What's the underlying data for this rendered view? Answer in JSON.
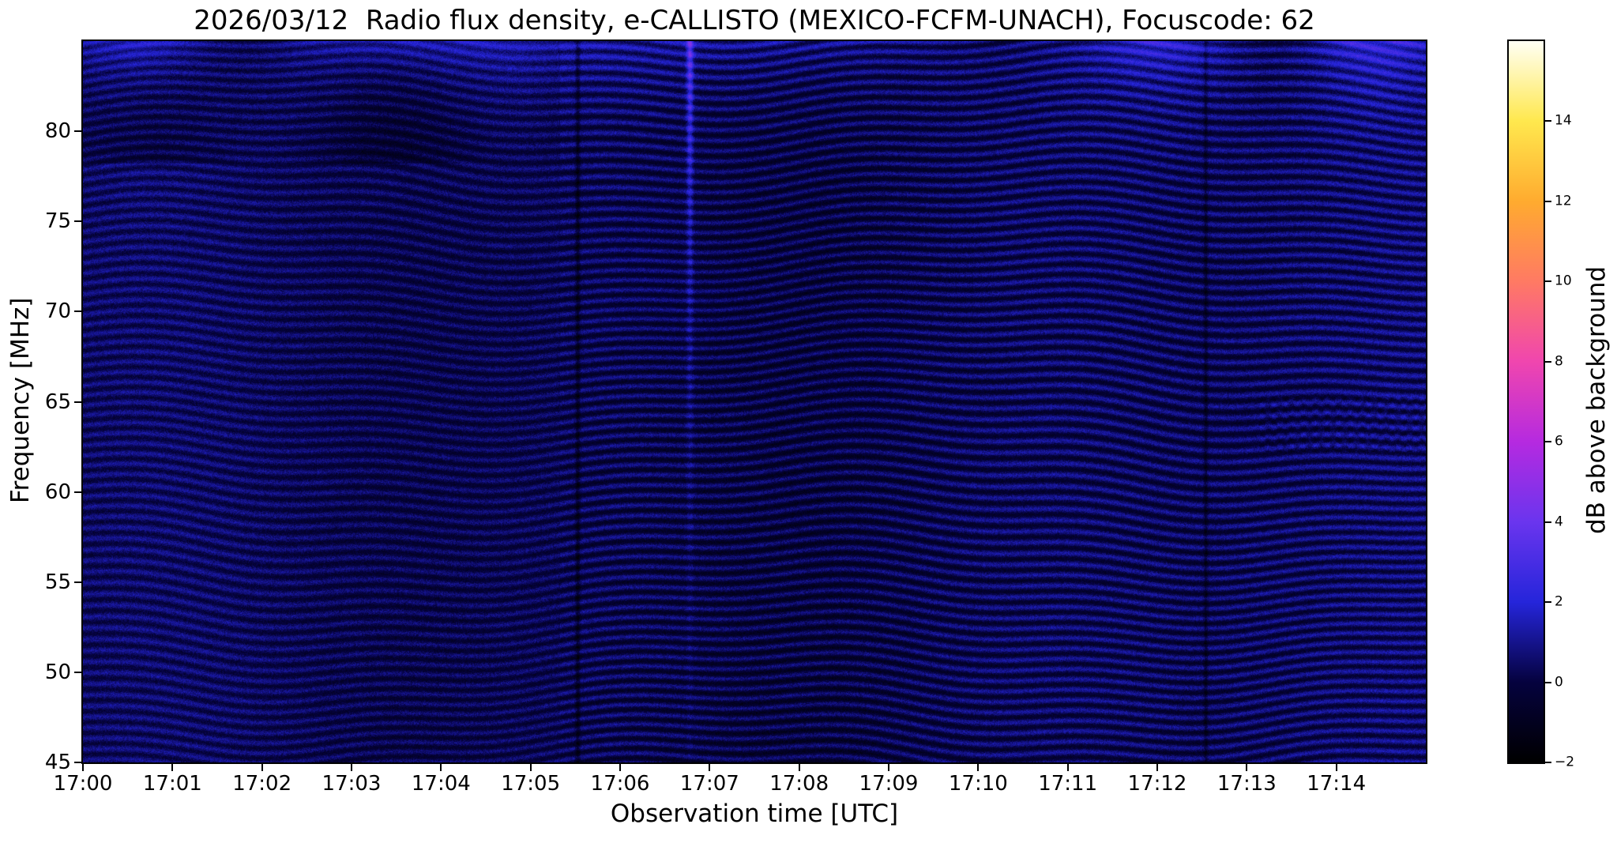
{
  "chart_data": {
    "type": "heatmap",
    "title": "2026/03/12  Radio flux density, e-CALLISTO (MEXICO-FCFM-UNACH), Focuscode: 62",
    "date": "2026/03/12",
    "instrument": "e-CALLISTO",
    "station": "MEXICO-FCFM-UNACH",
    "focuscode": 62,
    "xlabel": "Observation time [UTC]",
    "ylabel": "Frequency [MHz]",
    "x_axis": {
      "start": "17:00",
      "end": "17:15",
      "span_minutes": 15,
      "tick_interval_minutes": 1,
      "tick_labels": [
        "17:00",
        "17:01",
        "17:02",
        "17:03",
        "17:04",
        "17:05",
        "17:06",
        "17:07",
        "17:08",
        "17:09",
        "17:10",
        "17:11",
        "17:12",
        "17:13",
        "17:14"
      ]
    },
    "y_axis": {
      "min": 45,
      "max": 85,
      "unit": "MHz",
      "tick_values": [
        45,
        50,
        55,
        60,
        65,
        70,
        75,
        80
      ]
    },
    "colorbar": {
      "label": "dB above background",
      "min": -2,
      "max": 16,
      "tick_values": [
        -2,
        0,
        2,
        4,
        6,
        8,
        10,
        12,
        14
      ],
      "gradient_stops": [
        {
          "pos": 0.0,
          "color": "#000000"
        },
        {
          "pos": 0.111,
          "color": "#05023e"
        },
        {
          "pos": 0.222,
          "color": "#2525da"
        },
        {
          "pos": 0.333,
          "color": "#6a35ee"
        },
        {
          "pos": 0.444,
          "color": "#b52ae0"
        },
        {
          "pos": 0.556,
          "color": "#f046ae"
        },
        {
          "pos": 0.667,
          "color": "#ff7a63"
        },
        {
          "pos": 0.778,
          "color": "#ffab2f"
        },
        {
          "pos": 0.889,
          "color": "#ffe84e"
        },
        {
          "pos": 1.0,
          "color": "#fffff4"
        }
      ]
    },
    "background_color": "#ffffff",
    "dominant_plot_color": "#0a0a60",
    "content_summary": "Dynamic radio spectrogram dominated by faint dark-blue background near 0 dB with wavy horizontal interference fringes (roughly 1-2 dB peaks) undulating across the whole 15-minute window. Fringe texture changes character around 17:05; a thin brighter (slightly magenta) vertical line appears near 17:07 in the upper frequencies; brighter blue wave crests run along the top edge (~80-85 MHz); faint dark vertical lines near 17:05 and 17:12.5; a small blocky patterned patch near 63-65 MHz after 17:13. No strong solar burst present; intensities mostly between -1 and +3 dB above background."
  }
}
